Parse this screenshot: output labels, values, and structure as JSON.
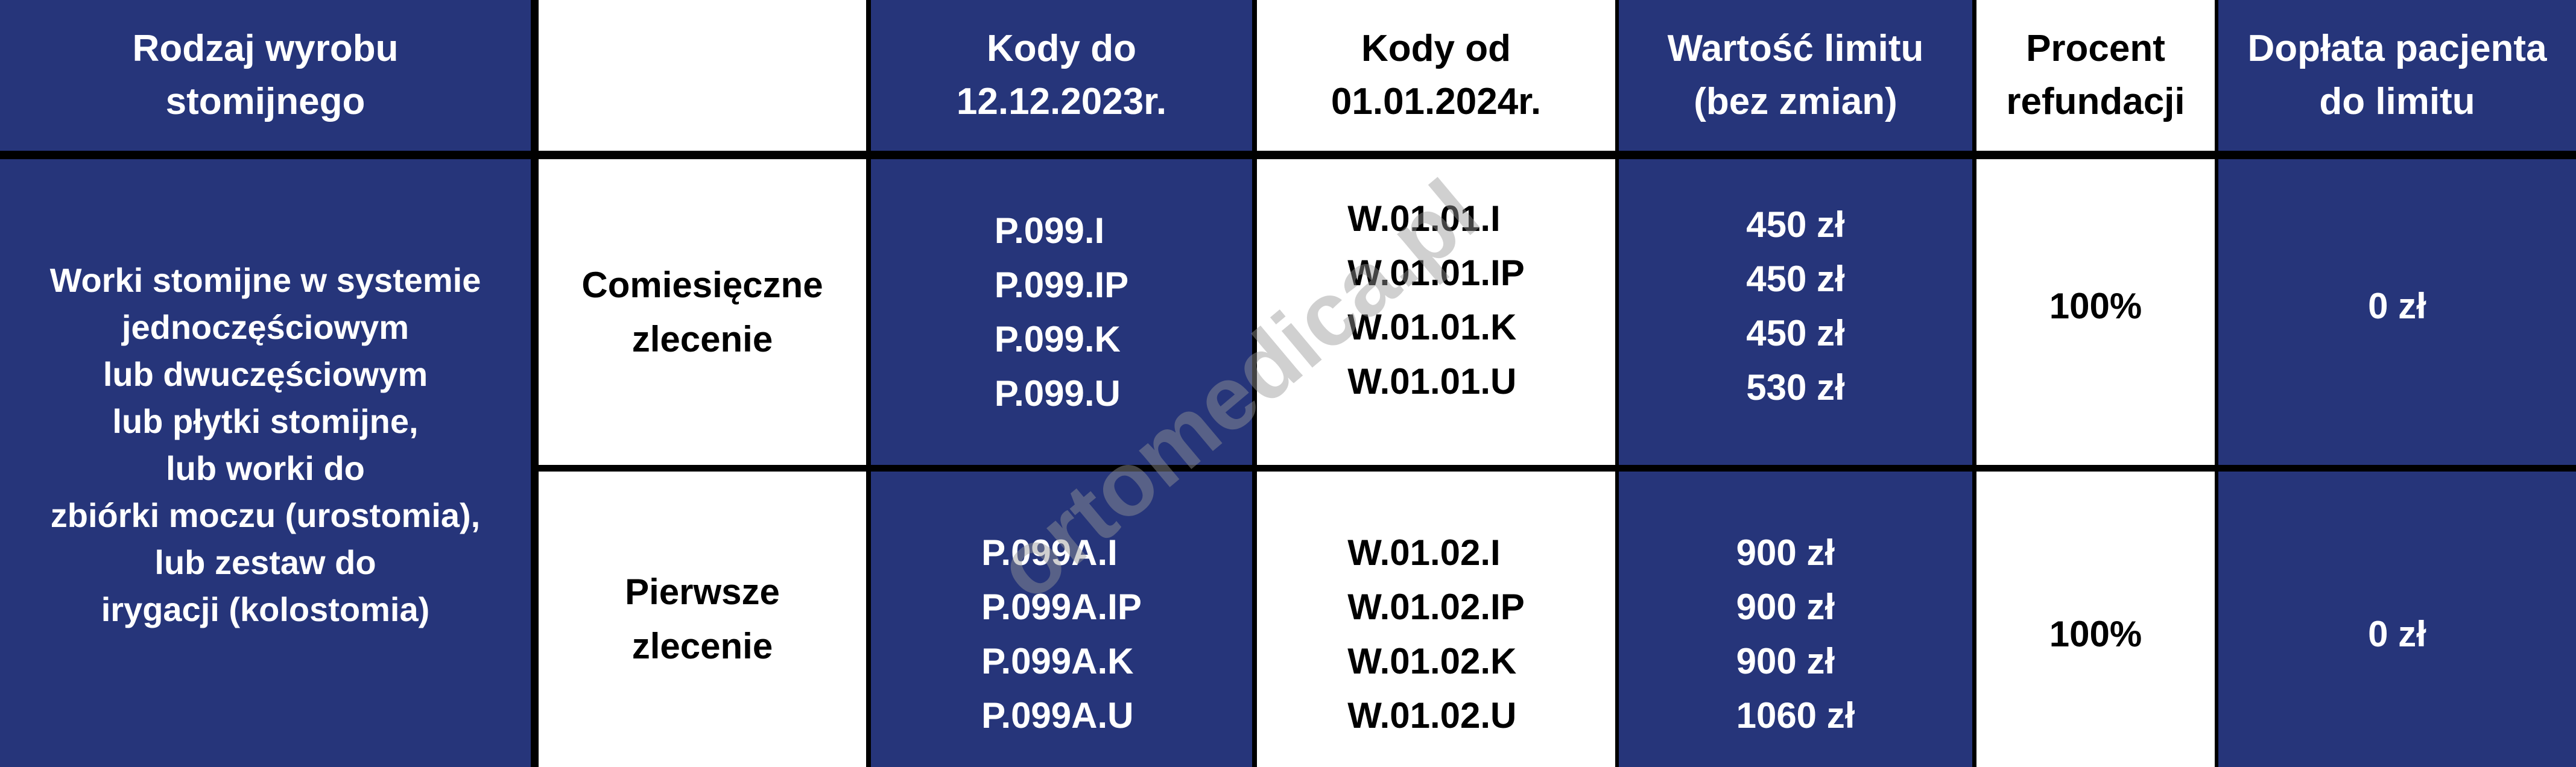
{
  "colors": {
    "header_blue": "#26357a",
    "white": "#ffffff",
    "border": "#000000"
  },
  "header": {
    "product_type": [
      "Rodzaj wyrobu",
      "stomijnego"
    ],
    "blank": "",
    "codes_old": [
      "Kody do",
      "12.12.2023r."
    ],
    "codes_new": [
      "Kody od",
      "01.01.2024r."
    ],
    "limit": [
      "Wartość limitu",
      "(bez zmian)"
    ],
    "refund": [
      "Procent",
      "refundacji"
    ],
    "copay": [
      "Dopłata pacjenta",
      "do limitu"
    ]
  },
  "product": [
    "Worki stomijne w systemie",
    "jednoczęściowym",
    "lub dwuczęściowym",
    "lub płytki stomijne,",
    "lub worki do",
    "zbiórki moczu (urostomia),",
    "lub zestaw do",
    "irygacji (kolostomia)"
  ],
  "rows": [
    {
      "order": [
        "Comiesięczne",
        "zlecenie"
      ],
      "codes_old": [
        "P.099.I",
        "P.099.IP",
        "P.099.K",
        "P.099.U"
      ],
      "codes_new": [
        "W.01.01.I",
        "W.01.01.IP",
        "W.01.01.K",
        "W.01.01.U"
      ],
      "limits": [
        "450 zł",
        "450 zł",
        "450 zł",
        "530 zł"
      ],
      "refund": "100%",
      "copay": "0 zł"
    },
    {
      "order": [
        "Pierwsze",
        "zlecenie"
      ],
      "codes_old": [
        "P.099A.I",
        "P.099A.IP",
        "P.099A.K",
        "P.099A.U"
      ],
      "codes_new": [
        "W.01.02.I",
        "W.01.02.IP",
        "W.01.02.K",
        "W.01.02.U"
      ],
      "limits": [
        "900 zł",
        "900 zł",
        "900 zł",
        "1060 zł"
      ],
      "refund": "100%",
      "copay": "0 zł"
    }
  ],
  "watermark": "ortomedica.pl"
}
